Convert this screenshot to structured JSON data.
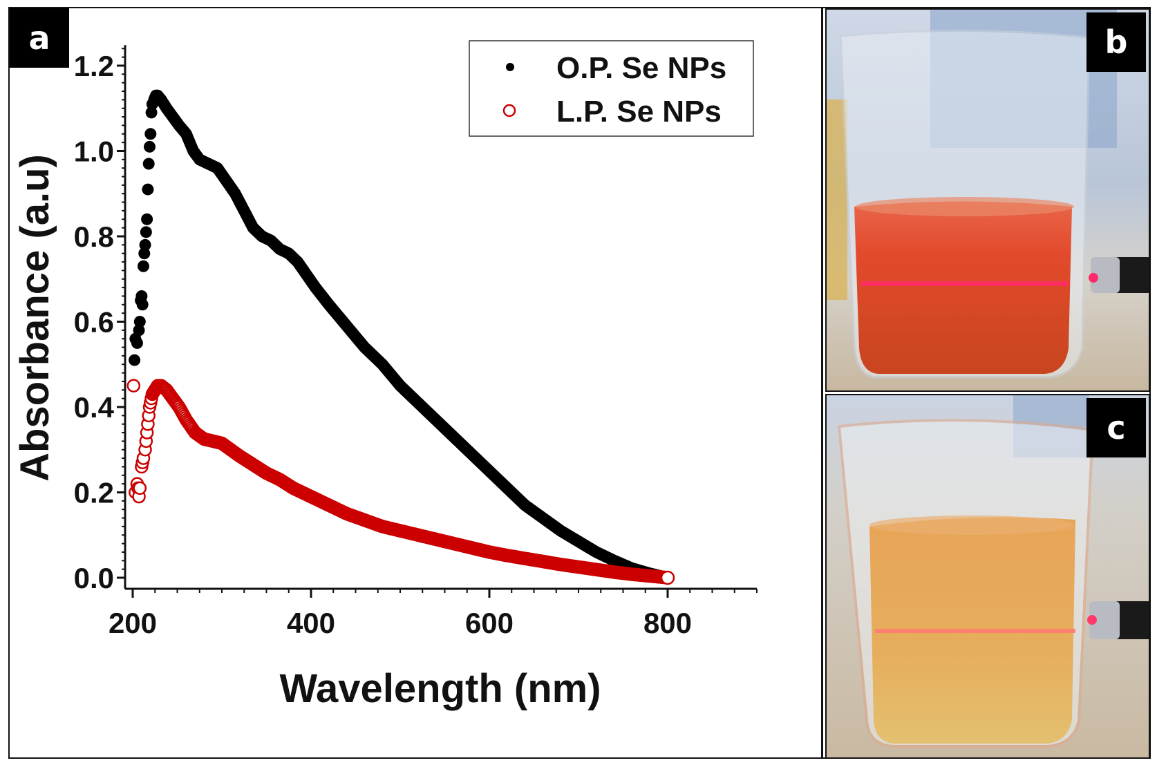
{
  "panels": {
    "a_label": "a",
    "b_label": "b",
    "c_label": "c"
  },
  "photos": {
    "b": {
      "description": "glass beaker with red-orange solution showing laser beam path (Tyndall effect)",
      "liquid_color": "#e0482a",
      "beam_color": "#ff2a6a"
    },
    "c": {
      "description": "glass beaker with amber-orange solution showing laser beam path (Tyndall effect)",
      "liquid_color": "#e3a44a",
      "beam_color": "#ff7a70"
    }
  },
  "chart_data": {
    "type": "scatter",
    "title": "",
    "xlabel": "Wavelength (nm)",
    "ylabel": "Absorbance (a.u)",
    "xlim": [
      185,
      900
    ],
    "ylim": [
      -0.02,
      1.24
    ],
    "xticks": [
      200,
      400,
      600,
      800
    ],
    "xtick_labels": [
      "200",
      "400",
      "600",
      "800"
    ],
    "yticks": [
      0.0,
      0.2,
      0.4,
      0.6,
      0.8,
      1.0,
      1.2
    ],
    "ytick_labels": [
      "0.0",
      "0.2",
      "0.4",
      "0.6",
      "0.8",
      "1.0",
      "1.2"
    ],
    "grid": false,
    "legend_position": "top-right",
    "series": [
      {
        "name": "O.P. Se NPs",
        "color": "#000000",
        "marker": "filled-circle",
        "points": [
          [
            202,
            0.51
          ],
          [
            203,
            0.56
          ],
          [
            205,
            0.55
          ],
          [
            207,
            0.58
          ],
          [
            208,
            0.6
          ],
          [
            209,
            0.65
          ],
          [
            210,
            0.66
          ],
          [
            211,
            0.64
          ],
          [
            212,
            0.73
          ],
          [
            213,
            0.76
          ],
          [
            214,
            0.78
          ],
          [
            215,
            0.81
          ],
          [
            216,
            0.84
          ],
          [
            217,
            0.91
          ],
          [
            218,
            0.97
          ],
          [
            219,
            1.01
          ],
          [
            220,
            1.04
          ],
          [
            221,
            1.09
          ],
          [
            222,
            1.11
          ],
          [
            224,
            1.12
          ],
          [
            226,
            1.13
          ],
          [
            228,
            1.13
          ],
          [
            232,
            1.12
          ],
          [
            238,
            1.1
          ],
          [
            245,
            1.08
          ],
          [
            252,
            1.06
          ],
          [
            260,
            1.04
          ],
          [
            268,
            1.0
          ],
          [
            275,
            0.98
          ],
          [
            285,
            0.97
          ],
          [
            295,
            0.96
          ],
          [
            305,
            0.93
          ],
          [
            315,
            0.9
          ],
          [
            325,
            0.86
          ],
          [
            335,
            0.82
          ],
          [
            345,
            0.8
          ],
          [
            355,
            0.79
          ],
          [
            365,
            0.77
          ],
          [
            375,
            0.76
          ],
          [
            385,
            0.74
          ],
          [
            395,
            0.71
          ],
          [
            405,
            0.68
          ],
          [
            420,
            0.64
          ],
          [
            440,
            0.59
          ],
          [
            460,
            0.54
          ],
          [
            480,
            0.5
          ],
          [
            500,
            0.45
          ],
          [
            520,
            0.41
          ],
          [
            540,
            0.37
          ],
          [
            560,
            0.33
          ],
          [
            580,
            0.29
          ],
          [
            600,
            0.25
          ],
          [
            620,
            0.21
          ],
          [
            640,
            0.17
          ],
          [
            660,
            0.14
          ],
          [
            680,
            0.11
          ],
          [
            700,
            0.085
          ],
          [
            720,
            0.06
          ],
          [
            740,
            0.04
          ],
          [
            760,
            0.022
          ],
          [
            780,
            0.01
          ],
          [
            800,
            0.0
          ]
        ]
      },
      {
        "name": "L.P. Se NPs",
        "color": "#cc0000",
        "marker": "open-circle",
        "points": [
          [
            201,
            0.45
          ],
          [
            203,
            0.2
          ],
          [
            205,
            0.22
          ],
          [
            206,
            0.21
          ],
          [
            207,
            0.19
          ],
          [
            208,
            0.21
          ],
          [
            210,
            0.26
          ],
          [
            211,
            0.27
          ],
          [
            212,
            0.28
          ],
          [
            214,
            0.3
          ],
          [
            215,
            0.32
          ],
          [
            216,
            0.34
          ],
          [
            217,
            0.36
          ],
          [
            218,
            0.38
          ],
          [
            219,
            0.4
          ],
          [
            220,
            0.41
          ],
          [
            221,
            0.42
          ],
          [
            222,
            0.43
          ],
          [
            225,
            0.44
          ],
          [
            228,
            0.45
          ],
          [
            232,
            0.45
          ],
          [
            238,
            0.44
          ],
          [
            245,
            0.42
          ],
          [
            252,
            0.4
          ],
          [
            260,
            0.37
          ],
          [
            270,
            0.34
          ],
          [
            280,
            0.325
          ],
          [
            290,
            0.32
          ],
          [
            300,
            0.315
          ],
          [
            310,
            0.3
          ],
          [
            320,
            0.285
          ],
          [
            335,
            0.265
          ],
          [
            350,
            0.245
          ],
          [
            365,
            0.23
          ],
          [
            380,
            0.21
          ],
          [
            400,
            0.19
          ],
          [
            420,
            0.17
          ],
          [
            440,
            0.15
          ],
          [
            460,
            0.135
          ],
          [
            480,
            0.12
          ],
          [
            500,
            0.11
          ],
          [
            520,
            0.1
          ],
          [
            540,
            0.09
          ],
          [
            560,
            0.08
          ],
          [
            580,
            0.07
          ],
          [
            600,
            0.06
          ],
          [
            620,
            0.052
          ],
          [
            640,
            0.045
          ],
          [
            660,
            0.038
          ],
          [
            680,
            0.031
          ],
          [
            700,
            0.025
          ],
          [
            720,
            0.019
          ],
          [
            740,
            0.013
          ],
          [
            760,
            0.008
          ],
          [
            780,
            0.004
          ],
          [
            800,
            0.0
          ]
        ]
      }
    ]
  }
}
